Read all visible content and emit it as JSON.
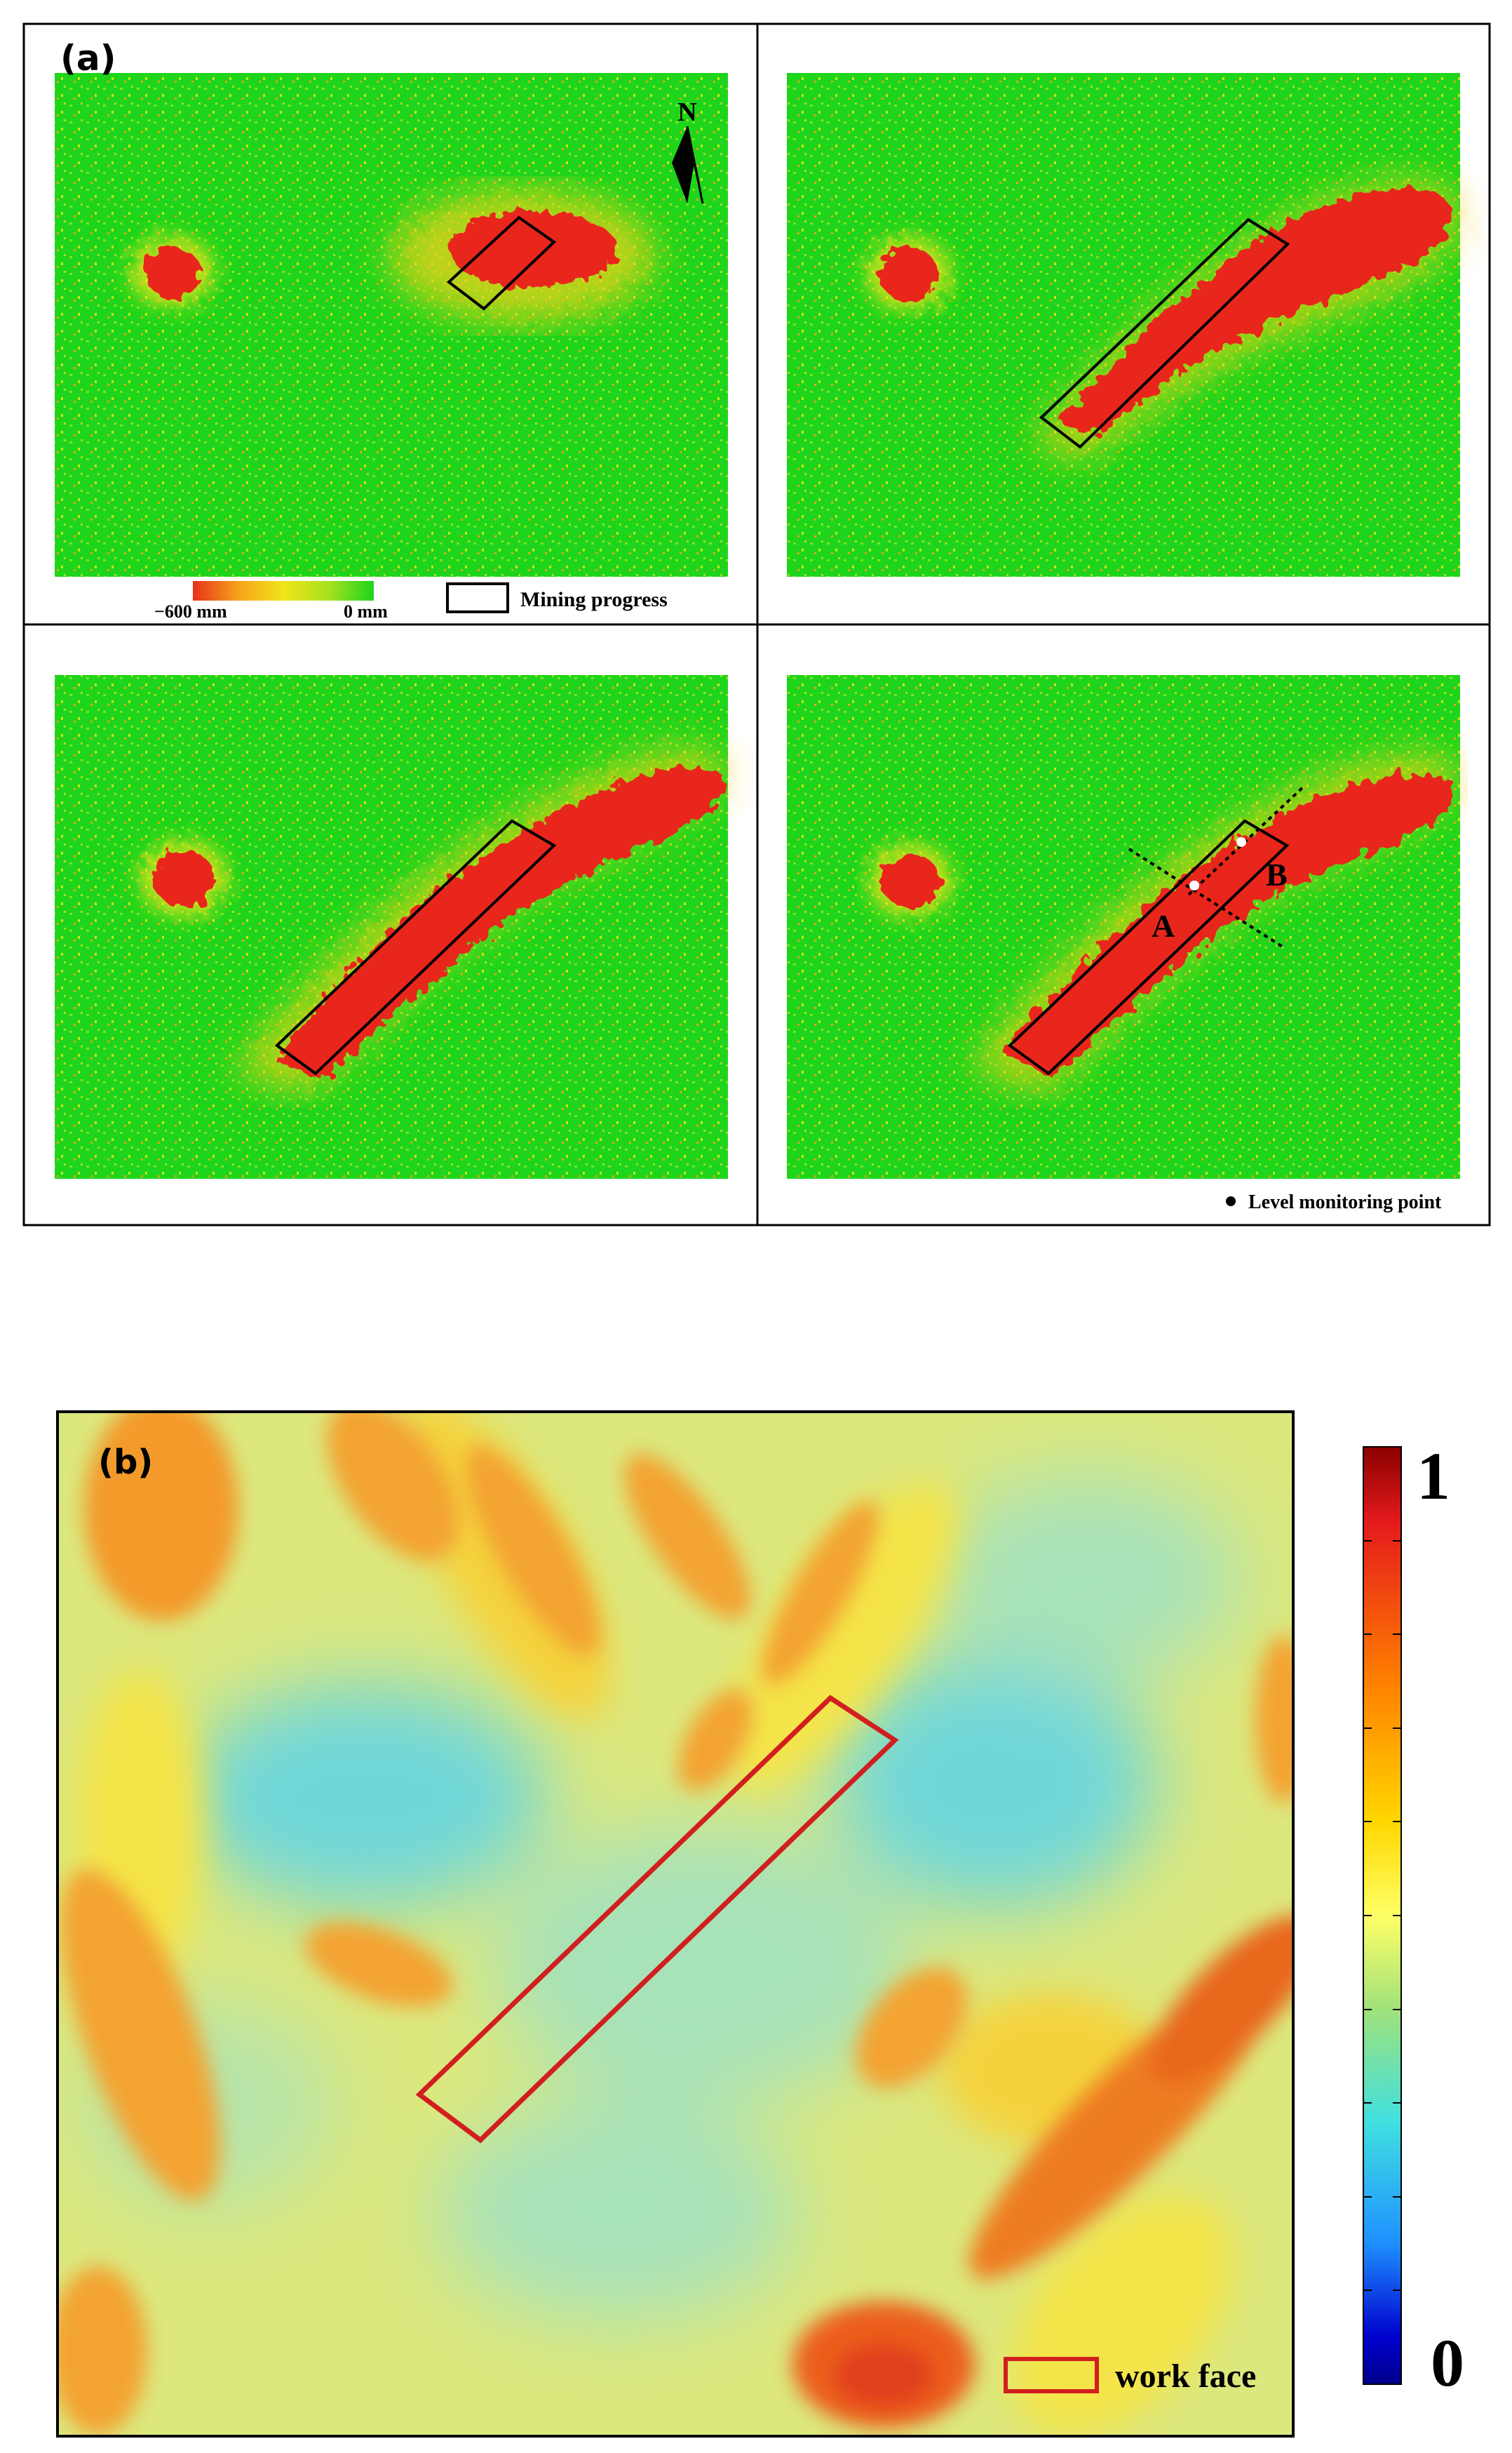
{
  "panel_a": {
    "label": "(a)",
    "north_label": "N",
    "colorbar": {
      "min_label": "−600 mm",
      "max_label": "0 mm",
      "colors": [
        "#e8321b",
        "#f6a21b",
        "#f2e41a",
        "#a7e21f",
        "#1fd51b"
      ]
    },
    "legend_mining": "Mining progress",
    "legend_level": "Level monitoring point",
    "profile_labels": {
      "a": "A",
      "b": "B"
    }
  },
  "panel_b": {
    "label": "(b)",
    "colorbar": {
      "top_label": "1",
      "bottom_label": "0",
      "colors": [
        "#8b0000",
        "#e41a1c",
        "#ff7f00",
        "#ffd700",
        "#ffff66",
        "#a0e27a",
        "#40e0e0",
        "#1e90ff",
        "#0000cd",
        "#00008b"
      ]
    },
    "legend_workface": "work face"
  },
  "colors": {
    "subsidence_green": "#1fd51b",
    "subsidence_red": "#e8281b",
    "frame": "#000000",
    "workface_red": "#d11f1f",
    "susceptibility_base": "#dce87e"
  }
}
